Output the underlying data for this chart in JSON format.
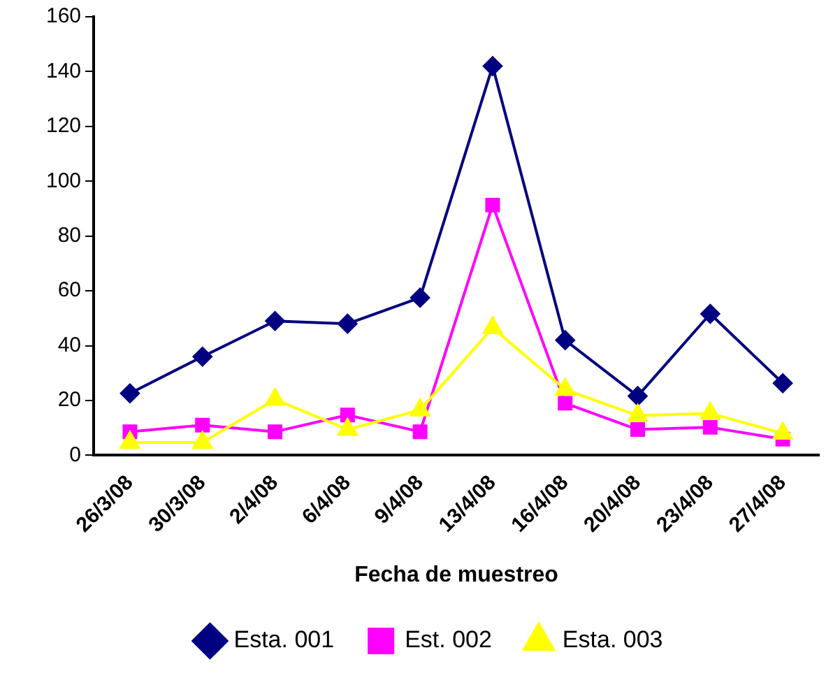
{
  "chart_data": {
    "type": "line",
    "xlabel": "Fecha de muestreo",
    "categories": [
      "26/3/08",
      "30/3/08",
      "2/4/08",
      "6/4/08",
      "9/4/08",
      "13/4/08",
      "16/4/08",
      "20/4/08",
      "23/4/08",
      "27/4/08"
    ],
    "series": [
      {
        "name": "Esta. 001",
        "color": "#000080",
        "marker": "diamond",
        "values": [
          22.6,
          36,
          49,
          48,
          57.5,
          142,
          42,
          21.6,
          51.6,
          26.3
        ]
      },
      {
        "name": "Est. 002",
        "color": "#ff00ff",
        "marker": "square",
        "values": [
          8.6,
          11,
          8.6,
          14.7,
          8.6,
          91.3,
          19,
          9.4,
          10.2,
          5.9
        ]
      },
      {
        "name": "Esta. 003",
        "color": "#ffff00",
        "marker": "triangle",
        "values": [
          4.7,
          4.7,
          20.4,
          9.4,
          16.5,
          46.5,
          24,
          14.5,
          15.3,
          8
        ]
      }
    ],
    "ylim": [
      0,
      160
    ],
    "yticks": [
      0,
      20,
      40,
      60,
      80,
      100,
      120,
      140,
      160
    ],
    "grid": false,
    "legend": "bottom",
    "line_style": "solid"
  }
}
